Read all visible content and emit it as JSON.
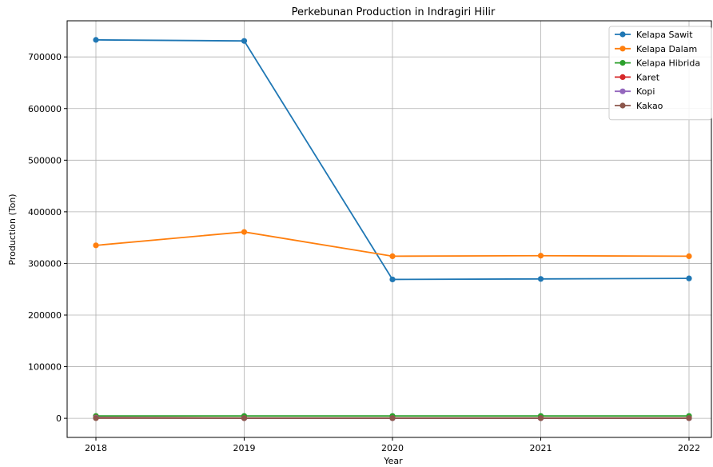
{
  "chart_data": {
    "type": "line",
    "title": "Perkebunan Production in Indragiri Hilir",
    "xlabel": "Year",
    "ylabel": "Production (Ton)",
    "x": [
      2018,
      2019,
      2020,
      2021,
      2022
    ],
    "x_tick_labels": [
      "2018",
      "2019",
      "2020",
      "2021",
      "2022"
    ],
    "ylim": [
      -37000,
      770000
    ],
    "y_ticks": [
      0,
      100000,
      200000,
      300000,
      400000,
      500000,
      600000,
      700000
    ],
    "y_tick_labels": [
      "0",
      "100000",
      "200000",
      "300000",
      "400000",
      "500000",
      "600000",
      "700000"
    ],
    "grid": true,
    "legend_position": "top-right",
    "series": [
      {
        "name": "Kelapa Sawit",
        "color": "#1f77b4",
        "values": [
          733000,
          731000,
          269000,
          270000,
          271000
        ]
      },
      {
        "name": "Kelapa Dalam",
        "color": "#ff7f0e",
        "values": [
          335000,
          361000,
          314000,
          315000,
          314000
        ]
      },
      {
        "name": "Kelapa Hibrida",
        "color": "#2ca02c",
        "values": [
          4500,
          4500,
          4500,
          4500,
          4500
        ]
      },
      {
        "name": "Karet",
        "color": "#d62728",
        "values": [
          1500,
          500,
          500,
          500,
          500
        ]
      },
      {
        "name": "Kopi",
        "color": "#9467bd",
        "values": [
          1000,
          200,
          200,
          200,
          200
        ]
      },
      {
        "name": "Kakao",
        "color": "#8c564b",
        "values": [
          300,
          300,
          300,
          300,
          300
        ]
      }
    ]
  }
}
